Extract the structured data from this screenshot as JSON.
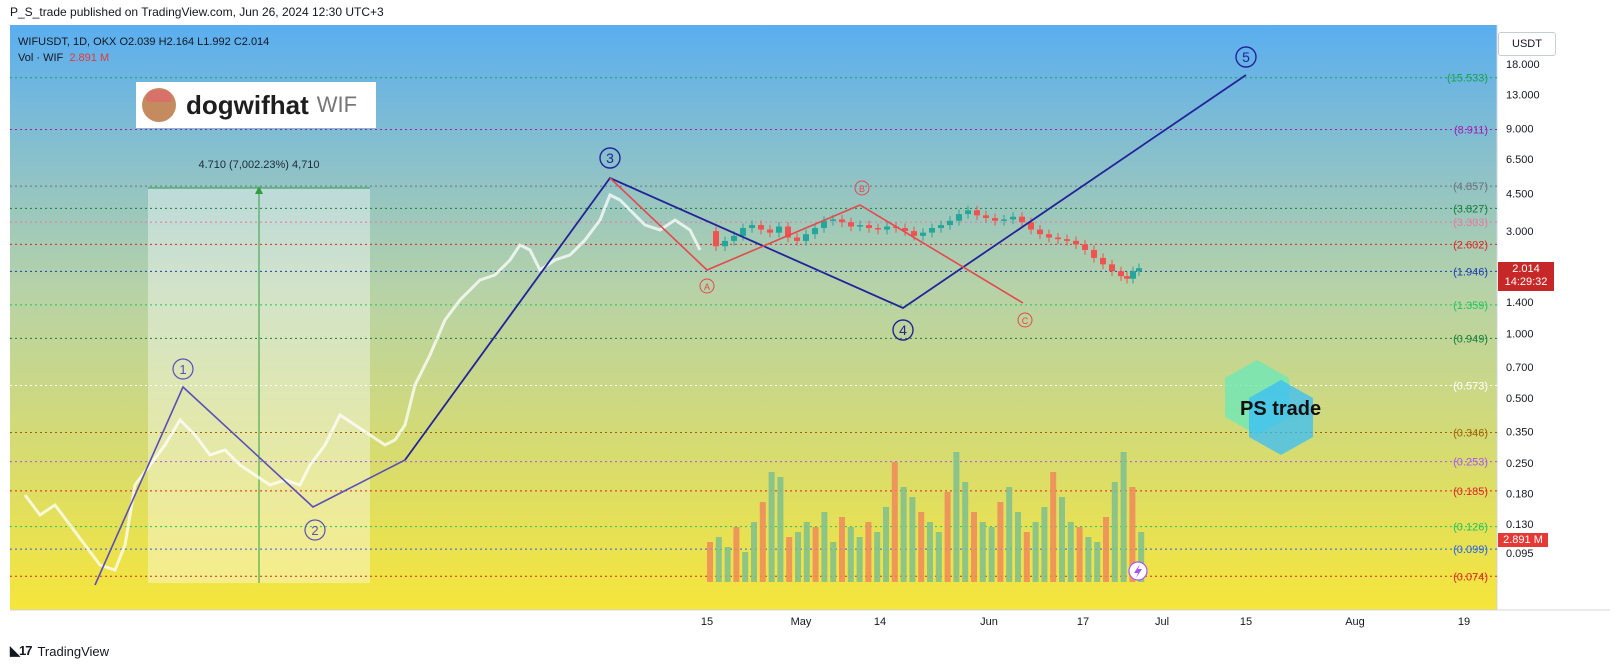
{
  "header": {
    "published_line": "P_S_trade published on TradingView.com, Jun 26, 2024 12:30 UTC+3"
  },
  "footer": {
    "brand": "TradingView"
  },
  "legend": {
    "symbol_line": "WIFUSDT, 1D, OKX  O2.039  H2.164  L1.992  C2.014",
    "vol_label": "Vol · WIF",
    "vol_value": "2.891 M"
  },
  "coin": {
    "name": "dogwifhat",
    "ticker": "WIF"
  },
  "currency_button": "USDT",
  "price_tag": {
    "price": "2.014",
    "countdown": "14:29:32"
  },
  "volume_tag": "2.891 M",
  "measure_label": "4.710 (7,002.23%) 4,710",
  "watermark": "PS trade",
  "colors": {
    "wave_blue": "#23239a",
    "wave_purple": "#5b4fb8",
    "corrective_red": "#e5484d",
    "candle_up": "#26a69a",
    "candle_down": "#ef5350",
    "gradient_top": "#5aaef0",
    "gradient_bottom": "#f5e63a"
  },
  "chart_data": {
    "type": "candlestick",
    "symbol": "WIFUSDT",
    "timeframe": "1D",
    "exchange": "OKX",
    "y_scale": "log",
    "y_range": [
      0.07,
      25
    ],
    "y_ticks": [
      "18.000",
      "13.000",
      "9.000",
      "6.500",
      "4.500",
      "3.000",
      "1.400",
      "1.000",
      "0.700",
      "0.500",
      "0.350",
      "0.250",
      "0.180",
      "0.130",
      "0.095"
    ],
    "x_ticks": [
      "15",
      "May",
      "14",
      "Jun",
      "17",
      "Jul",
      "15",
      "Aug",
      "19"
    ],
    "fib_levels": [
      {
        "label": "(15.533)",
        "value": 15.533,
        "color": "#16a34a"
      },
      {
        "label": "(8.911)",
        "value": 8.911,
        "color": "#a21caf"
      },
      {
        "label": "(4.857)",
        "value": 4.857,
        "color": "#6b7280"
      },
      {
        "label": "(3.827)",
        "value": 3.827,
        "color": "#15803d"
      },
      {
        "label": "(3.303)",
        "value": 3.303,
        "color": "#e879a0"
      },
      {
        "label": "(2.602)",
        "value": 2.602,
        "color": "#dc2626"
      },
      {
        "label": "(1.946)",
        "value": 1.946,
        "color": "#1e40af"
      },
      {
        "label": "(1.359)",
        "value": 1.359,
        "color": "#22c55e"
      },
      {
        "label": "(0.949)",
        "value": 0.949,
        "color": "#15803d"
      },
      {
        "label": "(0.573)",
        "value": 0.573,
        "color": "#ffffff"
      },
      {
        "label": "(0.346)",
        "value": 0.346,
        "color": "#a16207"
      },
      {
        "label": "(0.253)",
        "value": 0.253,
        "color": "#a855f7"
      },
      {
        "label": "(0.185)",
        "value": 0.185,
        "color": "#dc2626"
      },
      {
        "label": "(0.126)",
        "value": 0.126,
        "color": "#22c55e"
      },
      {
        "label": "(0.099)",
        "value": 0.099,
        "color": "#2563eb"
      },
      {
        "label": "(0.074)",
        "value": 0.074,
        "color": "#dc2626"
      }
    ],
    "impulse_wave_labels": [
      "1",
      "2",
      "3",
      "4",
      "5"
    ],
    "corrective_wave_labels": [
      "A",
      "B",
      "C"
    ],
    "last_price": 2.014,
    "last_volume": "2.891 M"
  }
}
